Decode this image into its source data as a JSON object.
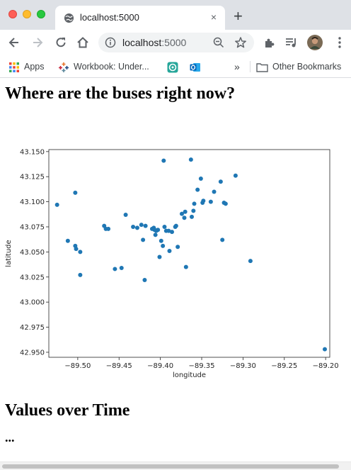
{
  "browser": {
    "tab_title": "localhost:5000",
    "tab_close": "×",
    "new_tab": "+",
    "url_host": "localhost",
    "url_port": ":5000",
    "bookmarks": [
      {
        "label": "Apps",
        "icon": "apps-grid-icon"
      },
      {
        "label": "Workbook: Under...",
        "icon": "tableau-icon"
      },
      {
        "label": "",
        "icon": "app-icon"
      },
      {
        "label": "",
        "icon": "outlook-icon"
      }
    ],
    "overflow": "»",
    "other_bookmarks": "Other Bookmarks"
  },
  "page": {
    "heading": "Where are the buses right now?",
    "section2_heading": "Values over Time",
    "ellipsis": "..."
  },
  "chart_data": {
    "type": "scatter",
    "xlabel": "longitude",
    "ylabel": "latitude",
    "xlim": [
      -89.535,
      -89.195
    ],
    "ylim": [
      42.945,
      43.152
    ],
    "xticks": [
      -89.5,
      -89.45,
      -89.4,
      -89.35,
      -89.3,
      -89.25,
      -89.2
    ],
    "yticks": [
      42.95,
      42.975,
      43.0,
      43.025,
      43.05,
      43.075,
      43.1,
      43.125,
      43.15
    ],
    "xtick_labels": [
      "−89.50",
      "−89.45",
      "−89.40",
      "−89.35",
      "−89.30",
      "−89.25",
      "−89.20"
    ],
    "ytick_labels": [
      "42.950",
      "42.975",
      "43.000",
      "43.025",
      "43.050",
      "43.075",
      "43.100",
      "43.125",
      "43.150"
    ],
    "grid": false,
    "marker_color": "#1f77b4",
    "points": [
      [
        -89.525,
        43.097
      ],
      [
        -89.503,
        43.109
      ],
      [
        -89.512,
        43.061
      ],
      [
        -89.503,
        43.056
      ],
      [
        -89.502,
        43.053
      ],
      [
        -89.497,
        43.05
      ],
      [
        -89.497,
        43.027
      ],
      [
        -89.468,
        43.076
      ],
      [
        -89.466,
        43.073
      ],
      [
        -89.463,
        43.073
      ],
      [
        -89.455,
        43.033
      ],
      [
        -89.447,
        43.034
      ],
      [
        -89.442,
        43.087
      ],
      [
        -89.433,
        43.075
      ],
      [
        -89.428,
        43.074
      ],
      [
        -89.423,
        43.077
      ],
      [
        -89.418,
        43.076
      ],
      [
        -89.421,
        43.062
      ],
      [
        -89.419,
        43.022
      ],
      [
        -89.41,
        43.073
      ],
      [
        -89.408,
        43.074
      ],
      [
        -89.407,
        43.072
      ],
      [
        -89.405,
        43.071
      ],
      [
        -89.406,
        43.067
      ],
      [
        -89.403,
        43.072
      ],
      [
        -89.401,
        43.045
      ],
      [
        -89.399,
        43.061
      ],
      [
        -89.397,
        43.056
      ],
      [
        -89.395,
        43.075
      ],
      [
        -89.393,
        43.071
      ],
      [
        -89.396,
        43.141
      ],
      [
        -89.39,
        43.071
      ],
      [
        -89.389,
        43.051
      ],
      [
        -89.386,
        43.07
      ],
      [
        -89.382,
        43.075
      ],
      [
        -89.381,
        43.076
      ],
      [
        -89.379,
        43.055
      ],
      [
        -89.374,
        43.088
      ],
      [
        -89.371,
        43.084
      ],
      [
        -89.37,
        43.09
      ],
      [
        -89.369,
        43.035
      ],
      [
        -89.363,
        43.142
      ],
      [
        -89.362,
        43.085
      ],
      [
        -89.36,
        43.091
      ],
      [
        -89.359,
        43.098
      ],
      [
        -89.355,
        43.112
      ],
      [
        -89.351,
        43.123
      ],
      [
        -89.349,
        43.099
      ],
      [
        -89.348,
        43.101
      ],
      [
        -89.339,
        43.1
      ],
      [
        -89.335,
        43.11
      ],
      [
        -89.327,
        43.12
      ],
      [
        -89.323,
        43.099
      ],
      [
        -89.321,
        43.098
      ],
      [
        -89.325,
        43.062
      ],
      [
        -89.309,
        43.126
      ],
      [
        -89.291,
        43.041
      ],
      [
        -89.201,
        42.953
      ]
    ]
  }
}
